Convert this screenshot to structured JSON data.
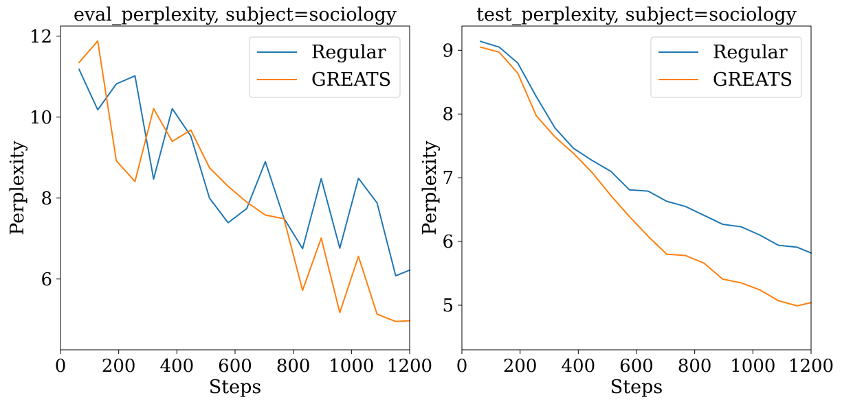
{
  "chart_data": [
    {
      "type": "line",
      "title": "eval_perplexity, subject=sociology",
      "xlabel": "Steps",
      "ylabel": "Perplexity",
      "xlim": [
        0,
        1200
      ],
      "ylim": [
        4.25,
        12.25
      ],
      "xticks": [
        0,
        200,
        400,
        600,
        800,
        1000,
        1200
      ],
      "xtick_labels": [
        "0",
        "200",
        "400",
        "600",
        "800",
        "1000",
        "1200"
      ],
      "yticks": [
        6,
        8,
        10,
        12
      ],
      "ytick_labels": [
        "6",
        "8",
        "10",
        "12"
      ],
      "grid": false,
      "legend_position": "top-right",
      "x": [
        64,
        128,
        192,
        256,
        320,
        384,
        448,
        512,
        576,
        640,
        704,
        768,
        832,
        896,
        960,
        1024,
        1088,
        1152,
        1200
      ],
      "series": [
        {
          "name": "Regular",
          "color": "#1f77b4",
          "values": [
            11.18,
            10.18,
            10.82,
            11.02,
            8.47,
            10.21,
            9.53,
            8.0,
            7.39,
            7.74,
            8.9,
            7.5,
            6.75,
            8.48,
            6.76,
            8.49,
            7.88,
            6.08,
            6.22
          ]
        },
        {
          "name": "GREATS",
          "color": "#ff7f0e",
          "values": [
            11.35,
            11.88,
            8.92,
            8.41,
            10.21,
            9.4,
            9.68,
            8.75,
            8.29,
            7.9,
            7.58,
            7.49,
            5.72,
            7.01,
            5.17,
            6.56,
            5.13,
            4.95,
            4.97
          ]
        }
      ]
    },
    {
      "type": "line",
      "title": "test_perplexity, subject=sociology",
      "xlabel": "Steps",
      "ylabel": "Perplexity",
      "xlim": [
        0,
        1200
      ],
      "ylim": [
        4.3,
        9.38
      ],
      "xticks": [
        0,
        200,
        400,
        600,
        800,
        1000,
        1200
      ],
      "xtick_labels": [
        "0",
        "200",
        "400",
        "600",
        "800",
        "1000",
        "1200"
      ],
      "yticks": [
        5,
        6,
        7,
        8,
        9
      ],
      "ytick_labels": [
        "5",
        "6",
        "7",
        "8",
        "9"
      ],
      "grid": false,
      "legend_position": "top-right",
      "x": [
        64,
        128,
        192,
        256,
        320,
        384,
        448,
        512,
        576,
        640,
        704,
        768,
        832,
        896,
        960,
        1024,
        1088,
        1152,
        1200
      ],
      "series": [
        {
          "name": "Regular",
          "color": "#1f77b4",
          "values": [
            9.14,
            9.05,
            8.8,
            8.27,
            7.78,
            7.46,
            7.27,
            7.1,
            6.81,
            6.79,
            6.63,
            6.55,
            6.41,
            6.27,
            6.23,
            6.1,
            5.94,
            5.91,
            5.82
          ]
        },
        {
          "name": "GREATS",
          "color": "#ff7f0e",
          "values": [
            9.05,
            8.97,
            8.64,
            7.97,
            7.64,
            7.38,
            7.08,
            6.72,
            6.39,
            6.08,
            5.8,
            5.78,
            5.66,
            5.41,
            5.35,
            5.24,
            5.07,
            4.99,
            5.04
          ]
        }
      ]
    }
  ]
}
